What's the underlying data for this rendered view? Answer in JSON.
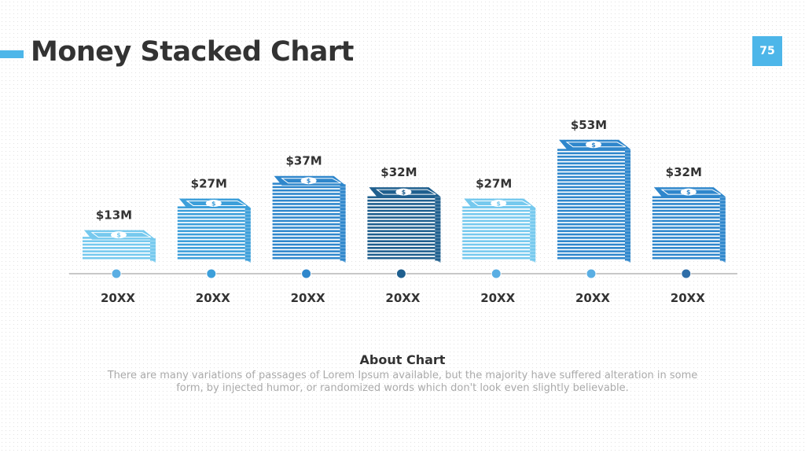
{
  "slide": {
    "title": "Money Stacked Chart",
    "page_number": "75",
    "accent_color": "#4db6e9"
  },
  "chart_data": {
    "type": "bar",
    "style": "money-stack pictograph",
    "title": "Money Stacked Chart",
    "categories": [
      "20XX",
      "20XX",
      "20XX",
      "20XX",
      "20XX",
      "20XX",
      "20XX"
    ],
    "values": [
      13,
      27,
      37,
      32,
      27,
      53,
      32
    ],
    "value_labels": [
      "$13M",
      "$27M",
      "$37M",
      "$32M",
      "$27M",
      "$53M",
      "$32M"
    ],
    "unit": "$M",
    "bar_colors": [
      "#76c9ee",
      "#3d9fda",
      "#2f87cc",
      "#1f5f8e",
      "#76c9ee",
      "#2f87cc",
      "#2f87cc"
    ],
    "marker_colors": [
      "#5aaee3",
      "#3d9fda",
      "#2f87cc",
      "#1f5f8e",
      "#5aaee3",
      "#5aaee3",
      "#2f6ea8"
    ],
    "axis_line_color": "#c8c8c8",
    "grid": false,
    "legend": "none"
  },
  "about": {
    "heading": "About Chart",
    "body": "There are many variations of passages of Lorem Ipsum available, but the majority have suffered alteration in some form, by injected humor, or randomized words which don't look even slightly believable."
  }
}
